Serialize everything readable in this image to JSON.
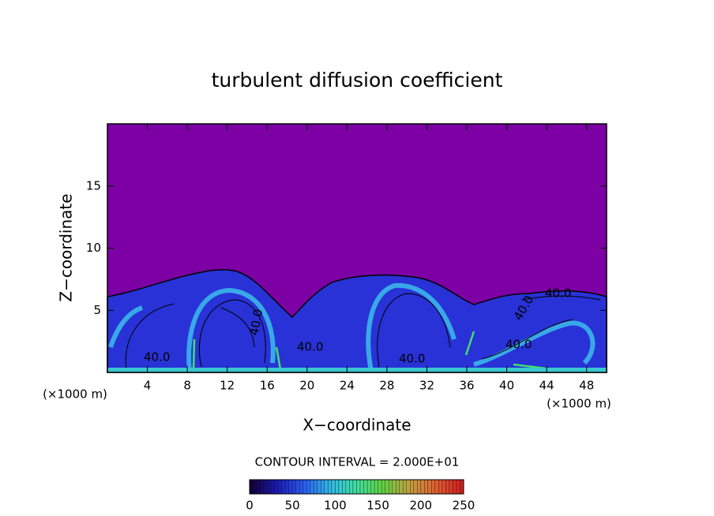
{
  "chart_data": {
    "type": "contour",
    "title": "turbulent diffusion coefficient",
    "x_label": "X−coordinate",
    "y_label": "Z−coordinate",
    "x_unit_left": "(×1000 m)",
    "x_unit_right": "(×1000 m)",
    "xlim": [
      0,
      50
    ],
    "ylim": [
      0,
      20
    ],
    "xticks": [
      4,
      8,
      12,
      16,
      20,
      24,
      28,
      32,
      36,
      40,
      44,
      48
    ],
    "yticks": [
      5,
      10,
      15
    ],
    "contour_interval_text": "CONTOUR INTERVAL = 2.000E+01",
    "contour_labels": [
      "40.0",
      "40.0",
      "40.0",
      "40.0",
      "40.0",
      "40.0",
      "40.0"
    ],
    "colorbar": {
      "lim": [
        0,
        250
      ],
      "ticks": [
        0,
        50,
        100,
        150,
        200,
        250
      ],
      "colors": [
        "#14003c",
        "#1a1ab4",
        "#2a5cf0",
        "#30b8e8",
        "#40e0a0",
        "#60d040",
        "#c0a040",
        "#e06030",
        "#d02020"
      ]
    }
  }
}
